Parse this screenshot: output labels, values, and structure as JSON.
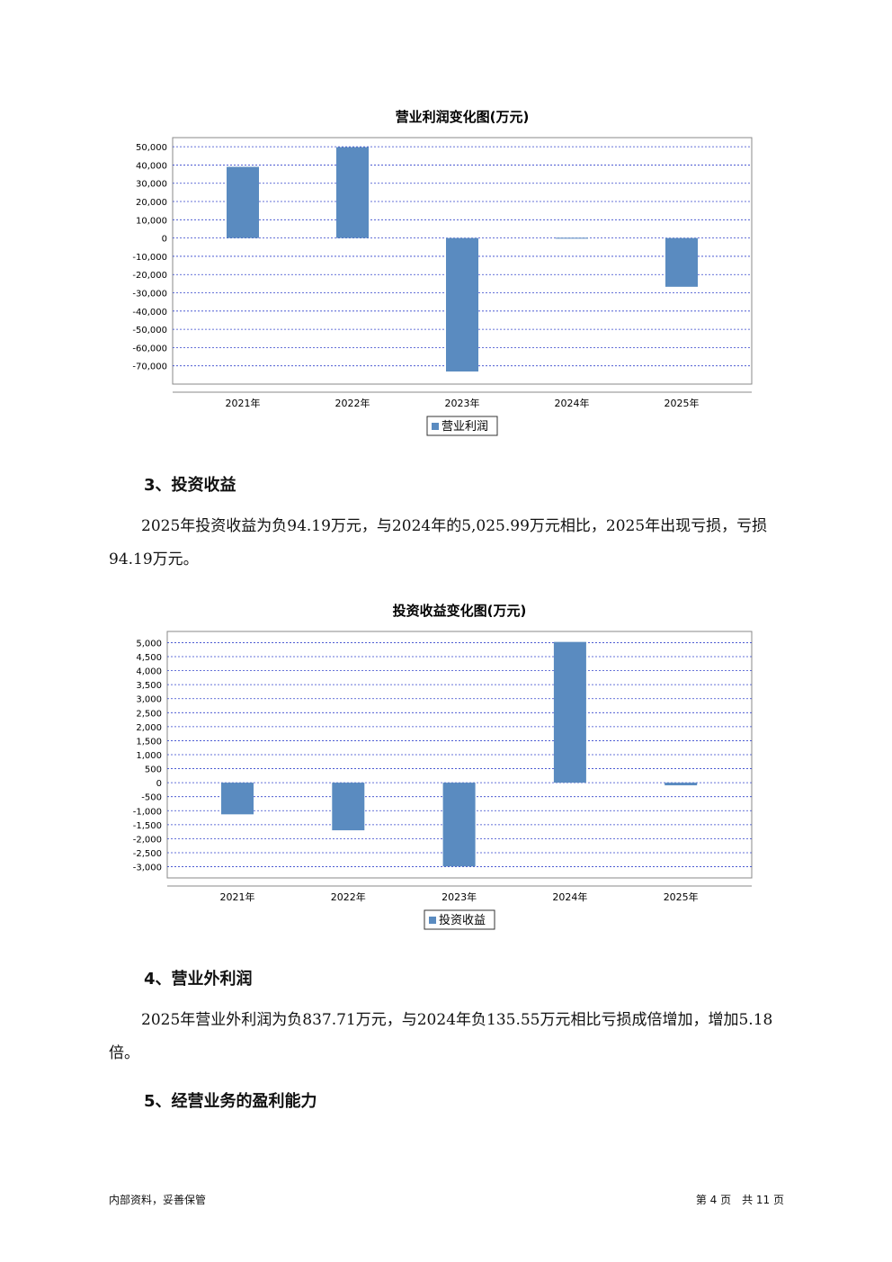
{
  "chart_data": [
    {
      "type": "bar",
      "title": "营业利润变化图(万元)",
      "categories": [
        "2021年",
        "2022年",
        "2023年",
        "2024年",
        "2025年"
      ],
      "series": [
        {
          "name": "营业利润",
          "color": "#5a8bc0",
          "values": [
            39000,
            49800,
            -73100,
            150,
            -26700
          ]
        }
      ],
      "ylim": [
        -80000,
        55000
      ],
      "yticks": [
        {
          "value": 50000,
          "label": "50,000"
        },
        {
          "value": 40000,
          "label": "40,000"
        },
        {
          "value": 30000,
          "label": "30,000"
        },
        {
          "value": 20000,
          "label": "20,000"
        },
        {
          "value": 10000,
          "label": "10,000"
        },
        0,
        {
          "value": -10000,
          "label": "-10,000"
        },
        {
          "value": -20000,
          "label": "-20,000"
        },
        {
          "value": -30000,
          "label": "-30,000"
        },
        {
          "value": -40000,
          "label": "-40,000"
        },
        {
          "value": -50000,
          "label": "-50,000"
        },
        {
          "value": -60000,
          "label": "-60,000"
        },
        {
          "value": -70000,
          "label": "-70,000"
        }
      ],
      "grid": true,
      "legend": "bottom"
    },
    {
      "type": "bar",
      "title": "投资收益变化图(万元)",
      "categories": [
        "2021年",
        "2022年",
        "2023年",
        "2024年",
        "2025年"
      ],
      "series": [
        {
          "name": "投资收益",
          "color": "#5a8bc0",
          "values": [
            -1130,
            -1700,
            -2990,
            5025.99,
            -94.19
          ]
        }
      ],
      "ylim": [
        -3400,
        5400
      ],
      "yticks": [
        {
          "value": 5000,
          "label": "5,000"
        },
        {
          "value": 4500,
          "label": "4,500"
        },
        {
          "value": 4000,
          "label": "4,000"
        },
        {
          "value": 3500,
          "label": "3,500"
        },
        {
          "value": 3000,
          "label": "3,000"
        },
        {
          "value": 2500,
          "label": "2,500"
        },
        {
          "value": 2000,
          "label": "2,000"
        },
        {
          "value": 1500,
          "label": "1,500"
        },
        {
          "value": 1000,
          "label": "1,000"
        },
        500,
        0,
        -500,
        {
          "value": -1000,
          "label": "-1,000"
        },
        {
          "value": -1500,
          "label": "-1,500"
        },
        {
          "value": -2000,
          "label": "-2,000"
        },
        {
          "value": -2500,
          "label": "-2,500"
        },
        {
          "value": -3000,
          "label": "-3,000"
        }
      ],
      "grid": true,
      "legend": "bottom"
    }
  ],
  "sections": [
    {
      "heading": "3、投资收益",
      "text": "2025年投资收益为负94.19万元，与2024年的5,025.99万元相比，2025年出现亏损，亏损94.19万元。"
    },
    {
      "heading": "4、营业外利润",
      "text": "2025年营业外利润为负837.71万元，与2024年负135.55万元相比亏损成倍增加，增加5.18倍。"
    },
    {
      "heading": "5、经营业务的盈利能力"
    }
  ],
  "footer": {
    "left": "内部资料，妥善保管",
    "right": "第 4 页　共 11 页"
  }
}
